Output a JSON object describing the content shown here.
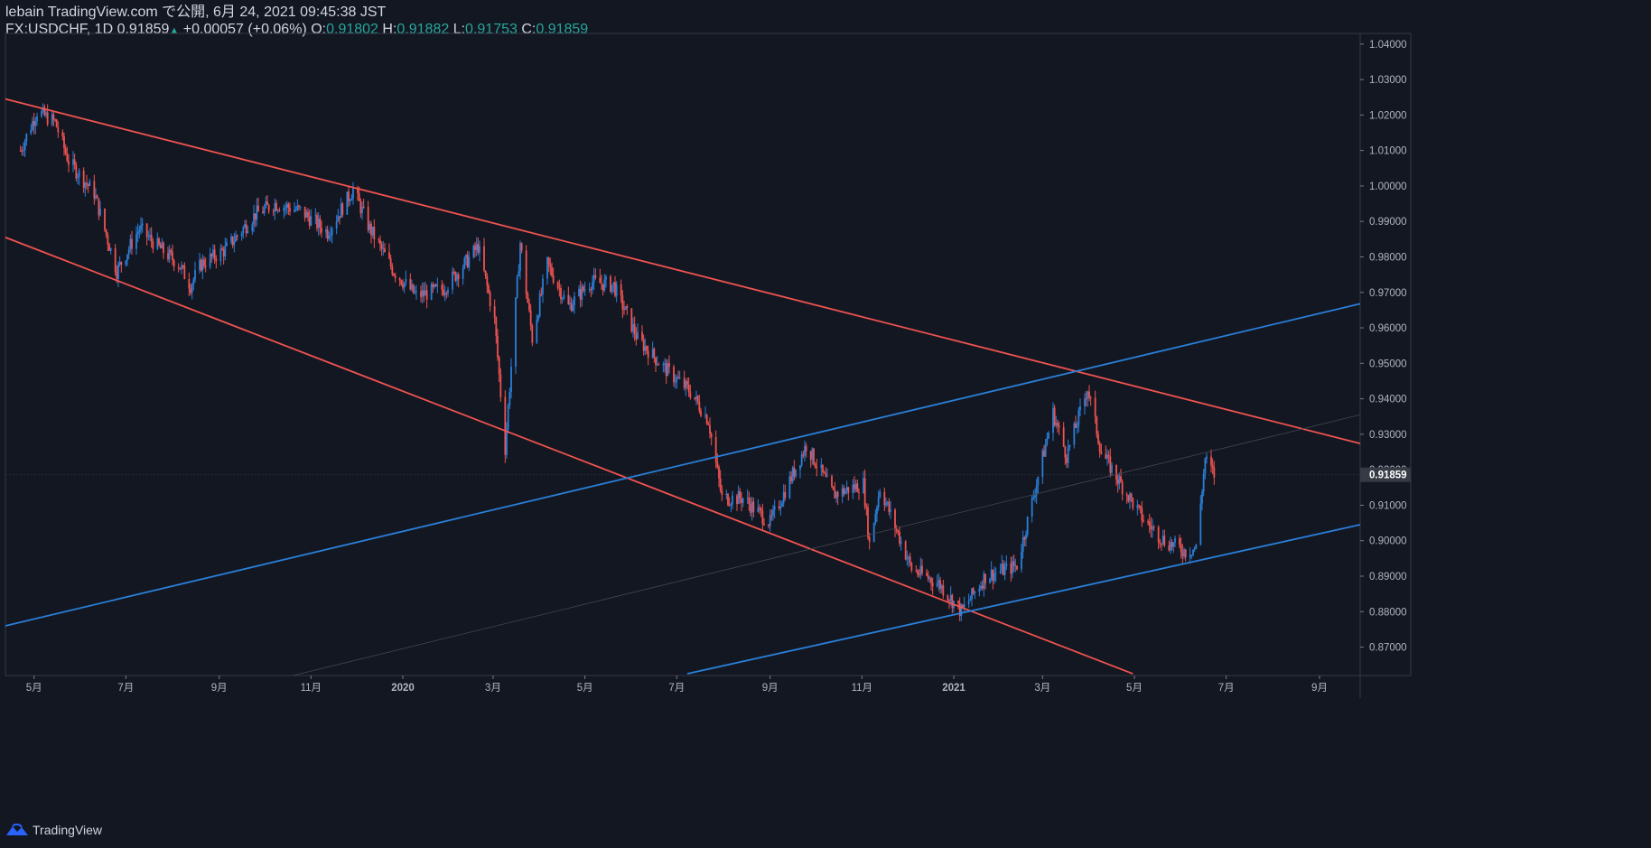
{
  "header": {
    "line1": "lebain TradingView.com で公開, 6月 24, 2021 09:45:38 JST",
    "symbol": "FX:USDCHF, 1D",
    "last": "0.91859",
    "arrow": "▲",
    "change": "+0.00057 (+0.06%)",
    "o_label": "O:",
    "o_val": "0.91802",
    "h_label": "H:",
    "h_val": "0.91882",
    "l_label": "L:",
    "l_val": "0.91753",
    "c_label": "C:",
    "c_val": "0.91859"
  },
  "footer": {
    "brand": "TradingView",
    "logo_icon": "tradingview-logo-icon"
  },
  "colors": {
    "background": "#131722",
    "up": "#2a7fd8",
    "down": "#ef5350",
    "text": "#d1d4dc",
    "accent": "#26a69a",
    "axis": "#787b86"
  },
  "chart_data": {
    "type": "candlestick",
    "symbol": "FX:USDCHF",
    "interval": "1D",
    "ylim": [
      0.862,
      1.043
    ],
    "y_ticks": [
      "1.04000",
      "1.03000",
      "1.02000",
      "1.01000",
      "1.00000",
      "0.99000",
      "0.98000",
      "0.97000",
      "0.96000",
      "0.95000",
      "0.94000",
      "0.93000",
      "0.92000",
      "0.91000",
      "0.90000",
      "0.89000",
      "0.88000",
      "0.87000"
    ],
    "last_price_label": "0.91859",
    "x_ticks": [
      "5月",
      "7月",
      "9月",
      "11月",
      "2020",
      "3月",
      "5月",
      "7月",
      "9月",
      "11月",
      "2021",
      "3月",
      "5月",
      "7月",
      "9月"
    ],
    "price_path": [
      [
        "2019-04-22",
        1.01
      ],
      [
        "2019-05-03",
        1.021
      ],
      [
        "2019-05-15",
        1.018
      ],
      [
        "2019-05-24",
        1.007
      ],
      [
        "2019-06-10",
        0.998
      ],
      [
        "2019-06-25",
        0.976
      ],
      [
        "2019-07-10",
        0.988
      ],
      [
        "2019-07-22",
        0.983
      ],
      [
        "2019-08-05",
        0.978
      ],
      [
        "2019-08-13",
        0.972
      ],
      [
        "2019-08-20",
        0.978
      ],
      [
        "2019-09-05",
        0.982
      ],
      [
        "2019-09-25",
        0.992
      ],
      [
        "2019-10-08",
        0.995
      ],
      [
        "2019-10-25",
        0.993
      ],
      [
        "2019-11-12",
        0.987
      ],
      [
        "2019-11-29",
        0.999
      ],
      [
        "2019-12-10",
        0.988
      ],
      [
        "2019-12-26",
        0.976
      ],
      [
        "2020-01-10",
        0.969
      ],
      [
        "2020-01-28",
        0.971
      ],
      [
        "2020-02-13",
        0.979
      ],
      [
        "2020-02-20",
        0.983
      ],
      [
        "2020-03-02",
        0.962
      ],
      [
        "2020-03-09",
        0.926
      ],
      [
        "2020-03-19",
        0.984
      ],
      [
        "2020-03-27",
        0.957
      ],
      [
        "2020-04-06",
        0.978
      ],
      [
        "2020-04-20",
        0.966
      ],
      [
        "2020-05-05",
        0.973
      ],
      [
        "2020-05-20",
        0.972
      ],
      [
        "2020-06-05",
        0.957
      ],
      [
        "2020-06-22",
        0.949
      ],
      [
        "2020-07-10",
        0.942
      ],
      [
        "2020-07-22",
        0.934
      ],
      [
        "2020-07-31",
        0.912
      ],
      [
        "2020-08-14",
        0.912
      ],
      [
        "2020-09-01",
        0.905
      ],
      [
        "2020-09-25",
        0.927
      ],
      [
        "2020-10-13",
        0.913
      ],
      [
        "2020-11-02",
        0.916
      ],
      [
        "2020-11-06",
        0.899
      ],
      [
        "2020-11-13",
        0.915
      ],
      [
        "2020-12-04",
        0.892
      ],
      [
        "2020-12-22",
        0.888
      ],
      [
        "2021-01-06",
        0.88
      ],
      [
        "2021-01-22",
        0.89
      ],
      [
        "2021-02-12",
        0.893
      ],
      [
        "2021-03-08",
        0.936
      ],
      [
        "2021-03-17",
        0.924
      ],
      [
        "2021-03-31",
        0.943
      ],
      [
        "2021-04-09",
        0.925
      ],
      [
        "2021-04-22",
        0.916
      ],
      [
        "2021-05-07",
        0.906
      ],
      [
        "2021-05-21",
        0.9
      ],
      [
        "2021-06-04",
        0.897
      ],
      [
        "2021-06-11",
        0.898
      ],
      [
        "2021-06-17",
        0.923
      ],
      [
        "2021-06-23",
        0.9186
      ]
    ],
    "trendlines": [
      {
        "color": "red",
        "start": [
          "2019-04-12",
          1.0245
        ],
        "end": [
          "2021-09-28",
          0.9274
        ]
      },
      {
        "color": "red",
        "start": [
          "2019-04-12",
          0.9855
        ],
        "end": [
          "2021-04-30",
          0.8625
        ]
      },
      {
        "color": "blue",
        "start": [
          "2019-04-12",
          0.876
        ],
        "end": [
          "2021-09-28",
          0.9668
        ]
      },
      {
        "color": "blue",
        "start": [
          "2020-07-08",
          0.8625
        ],
        "end": [
          "2021-09-28",
          0.9045
        ]
      }
    ],
    "x_range": [
      "2019-04-12",
      "2021-09-28"
    ]
  }
}
